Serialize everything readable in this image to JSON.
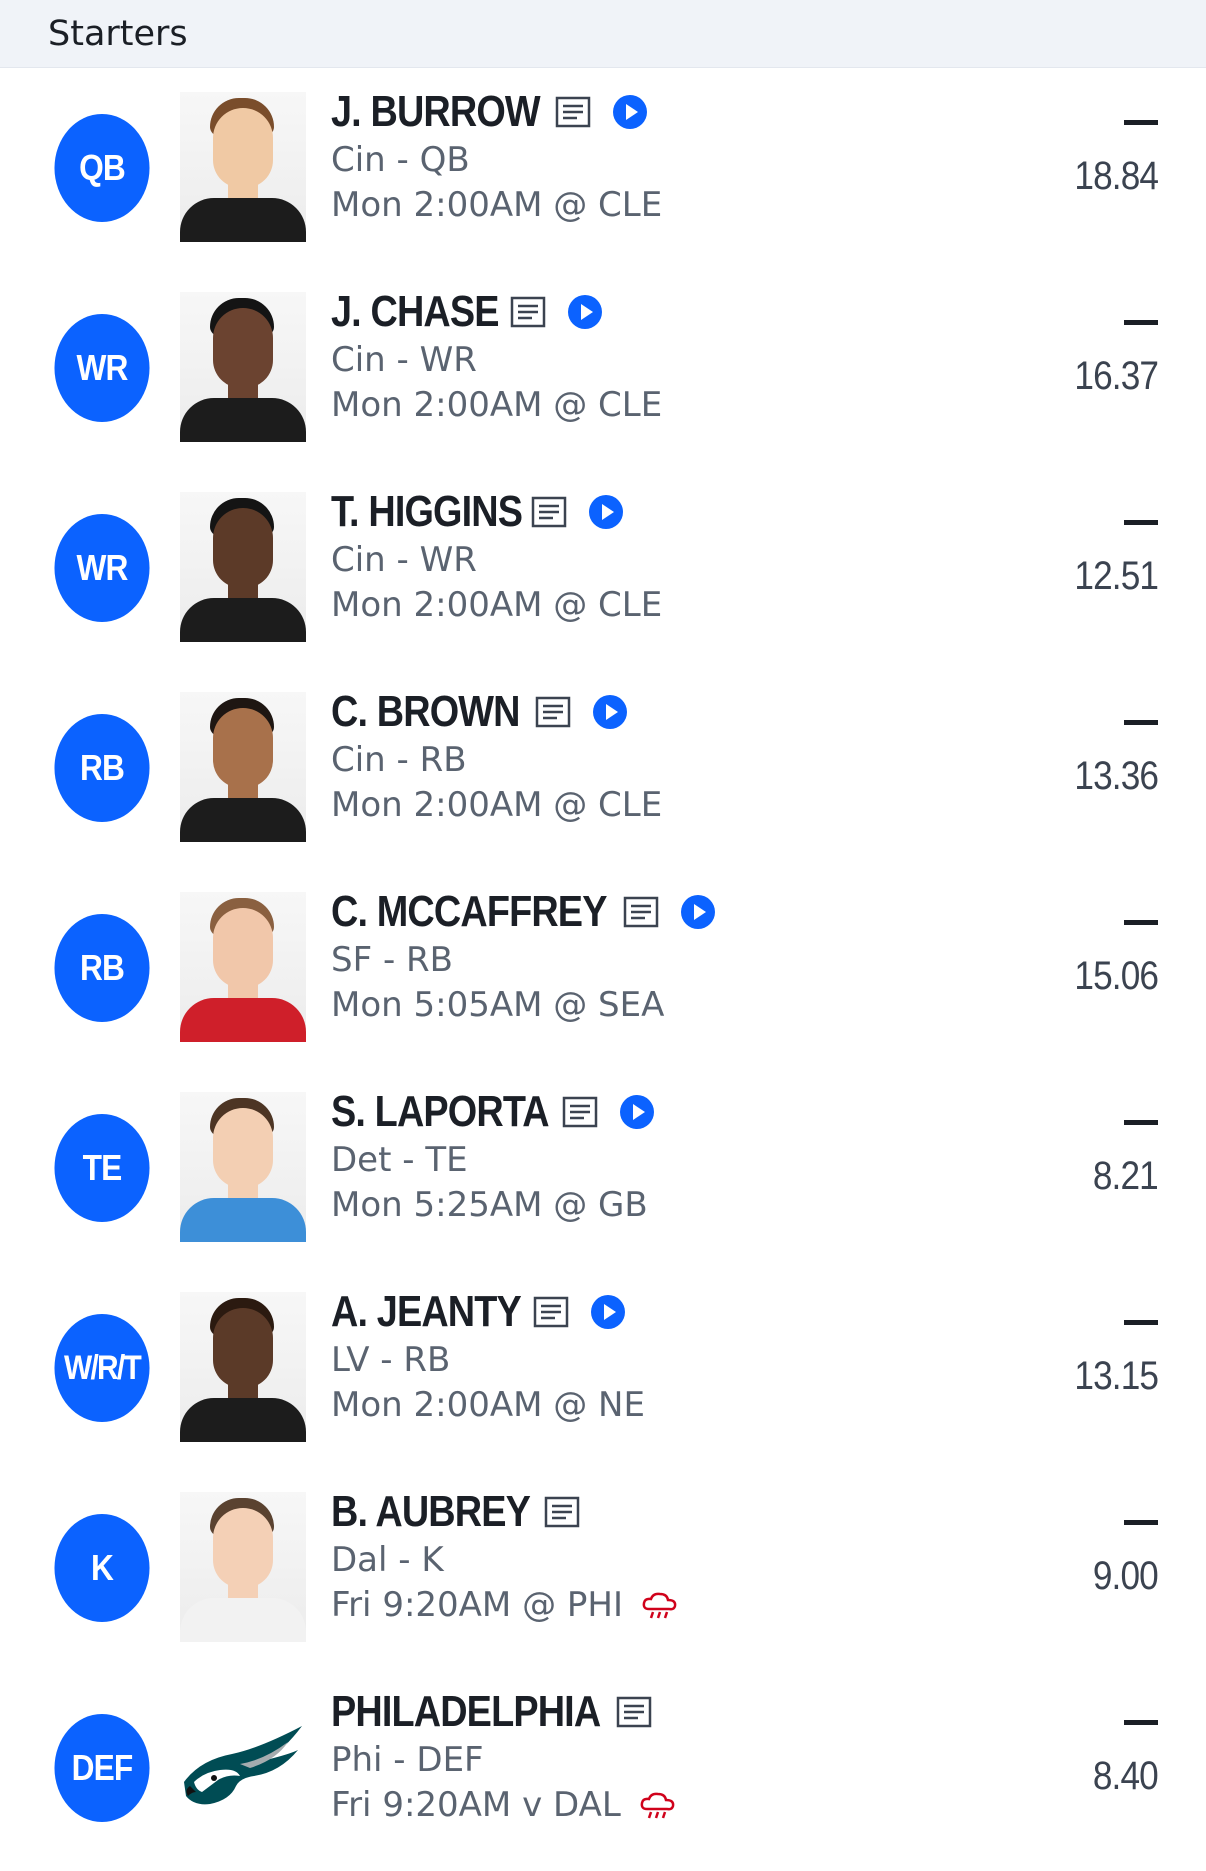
{
  "section": {
    "title": "Starters"
  },
  "colors": {
    "accent": "#0b62ff",
    "weather_alert": "#d0021b",
    "text_primary": "#1b1f26",
    "text_secondary": "#5a6370"
  },
  "starters": [
    {
      "position": "QB",
      "name": "J. BURROW",
      "team_pos": "Cin - QB",
      "game": "Mon 2:00AM @ CLE",
      "actual": "—",
      "projected": "18.84",
      "has_video": true,
      "weather": false
    },
    {
      "position": "WR",
      "name": "J. CHASE",
      "team_pos": "Cin - WR",
      "game": "Mon 2:00AM @ CLE",
      "actual": "—",
      "projected": "16.37",
      "has_video": true,
      "weather": false
    },
    {
      "position": "WR",
      "name": "T. HIGGINS",
      "team_pos": "Cin - WR",
      "game": "Mon 2:00AM @ CLE",
      "actual": "—",
      "projected": "12.51",
      "has_video": true,
      "weather": false
    },
    {
      "position": "RB",
      "name": "C. BROWN",
      "team_pos": "Cin - RB",
      "game": "Mon 2:00AM @ CLE",
      "actual": "—",
      "projected": "13.36",
      "has_video": true,
      "weather": false
    },
    {
      "position": "RB",
      "name": "C. MCCAFFREY",
      "team_pos": "SF - RB",
      "game": "Mon 5:05AM @ SEA",
      "actual": "—",
      "projected": "15.06",
      "has_video": true,
      "weather": false
    },
    {
      "position": "TE",
      "name": "S. LAPORTA",
      "team_pos": "Det - TE",
      "game": "Mon 5:25AM @ GB",
      "actual": "—",
      "projected": "8.21",
      "has_video": true,
      "weather": false
    },
    {
      "position": "W/R/T",
      "name": "A. JEANTY",
      "team_pos": "LV - RB",
      "game": "Mon 2:00AM @ NE",
      "actual": "—",
      "projected": "13.15",
      "has_video": true,
      "weather": false
    },
    {
      "position": "K",
      "name": "B. AUBREY",
      "team_pos": "Dal - K",
      "game": "Fri 9:20AM @ PHI",
      "actual": "—",
      "projected": "9.00",
      "has_video": false,
      "weather": true
    },
    {
      "position": "DEF",
      "name": "PHILADELPHIA",
      "team_pos": "Phi - DEF",
      "game": "Fri 9:20AM v DAL",
      "actual": "—",
      "projected": "8.40",
      "has_video": false,
      "weather": true
    }
  ],
  "icons": {
    "news": "news-article-icon",
    "video": "play-video-icon",
    "weather": "weather-rain-icon",
    "team_logo": "eagles-logo-icon"
  }
}
